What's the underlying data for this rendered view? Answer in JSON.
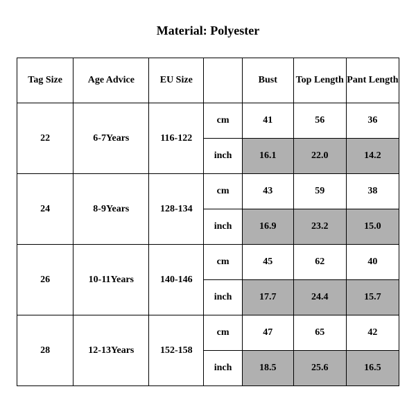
{
  "title": "Material: Polyester",
  "table": {
    "columns": [
      "Tag Size",
      "Age Advice",
      "EU Size",
      "",
      "Bust",
      "Top Length",
      "Pant Length"
    ],
    "unit_labels": {
      "cm": "cm",
      "inch": "inch"
    },
    "rows": [
      {
        "tag_size": "22",
        "age_advice": "6-7Years",
        "eu_size": "116-122",
        "cm": {
          "bust": "41",
          "top_length": "56",
          "pant_length": "36"
        },
        "inch": {
          "bust": "16.1",
          "top_length": "22.0",
          "pant_length": "14.2"
        }
      },
      {
        "tag_size": "24",
        "age_advice": "8-9Years",
        "eu_size": "128-134",
        "cm": {
          "bust": "43",
          "top_length": "59",
          "pant_length": "38"
        },
        "inch": {
          "bust": "16.9",
          "top_length": "23.2",
          "pant_length": "15.0"
        }
      },
      {
        "tag_size": "26",
        "age_advice": "10-11Years",
        "eu_size": "140-146",
        "cm": {
          "bust": "45",
          "top_length": "62",
          "pant_length": "40"
        },
        "inch": {
          "bust": "17.7",
          "top_length": "24.4",
          "pant_length": "15.7"
        }
      },
      {
        "tag_size": "28",
        "age_advice": "12-13Years",
        "eu_size": "152-158",
        "cm": {
          "bust": "47",
          "top_length": "65",
          "pant_length": "42"
        },
        "inch": {
          "bust": "18.5",
          "top_length": "25.6",
          "pant_length": "16.5"
        }
      }
    ],
    "colors": {
      "background": "#ffffff",
      "text": "#000000",
      "border": "#000000",
      "shaded_cell": "#b0b0b0"
    },
    "typography": {
      "font_family": "Times New Roman",
      "title_fontsize_pt": 14,
      "cell_fontsize_pt": 11,
      "weight": "bold"
    }
  }
}
